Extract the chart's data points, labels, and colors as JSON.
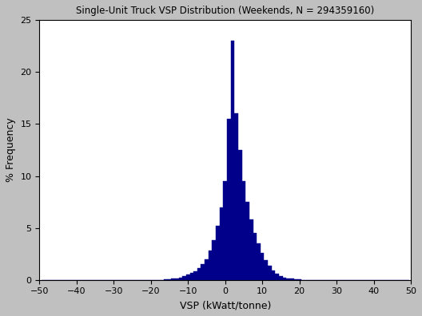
{
  "title": "Single-Unit Truck VSP Distribution (Weekends, N = 294359160)",
  "xlabel": "VSP (kWatt/tonne)",
  "ylabel": "% Frequency",
  "xlim": [
    -50,
    50
  ],
  "ylim": [
    0,
    25
  ],
  "xticks": [
    -50,
    -40,
    -30,
    -20,
    -10,
    0,
    10,
    20,
    30,
    40,
    50
  ],
  "yticks": [
    0,
    5,
    10,
    15,
    20,
    25
  ],
  "bar_color": "#00008B",
  "bar_edge_color": "#00008B",
  "background_color": "#C0C0C0",
  "plot_bg_color": "#FFFFFF",
  "title_fontsize": 8.5,
  "label_fontsize": 9,
  "tick_fontsize": 8,
  "bin_width": 1,
  "vsp_centers": [
    -49,
    -48,
    -47,
    -46,
    -45,
    -44,
    -43,
    -42,
    -41,
    -40,
    -39,
    -38,
    -37,
    -36,
    -35,
    -34,
    -33,
    -32,
    -31,
    -30,
    -29,
    -28,
    -27,
    -26,
    -25,
    -24,
    -23,
    -22,
    -21,
    -20,
    -19,
    -18,
    -17,
    -16,
    -15,
    -14,
    -13,
    -12,
    -11,
    -10,
    -9,
    -8,
    -7,
    -6,
    -5,
    -4,
    -3,
    -2,
    -1,
    0,
    1,
    2,
    3,
    4,
    5,
    6,
    7,
    8,
    9,
    10,
    11,
    12,
    13,
    14,
    15,
    16,
    17,
    18,
    19,
    20,
    21,
    22,
    23,
    24,
    25,
    26,
    27,
    28,
    29,
    30,
    31,
    32,
    33,
    34,
    35,
    36,
    37,
    38,
    39,
    40,
    41,
    42,
    43,
    44,
    45,
    46,
    47,
    48,
    49
  ],
  "frequencies": [
    0.0,
    0.0,
    0.0,
    0.0,
    0.0,
    0.0,
    0.0,
    0.0,
    0.0,
    0.0,
    0.0,
    0.0,
    0.0,
    0.0,
    0.0,
    0.0,
    0.0,
    0.0,
    0.0,
    0.0,
    0.0,
    0.0,
    0.0,
    0.0,
    0.0,
    0.0,
    0.0,
    0.0,
    0.0,
    0.0,
    0.0,
    0.0,
    0.0,
    0.05,
    0.08,
    0.1,
    0.15,
    0.25,
    0.35,
    0.5,
    0.65,
    0.85,
    1.1,
    1.5,
    2.0,
    2.8,
    3.8,
    5.2,
    7.0,
    9.5,
    15.5,
    23.0,
    16.0,
    12.5,
    9.5,
    7.5,
    5.8,
    4.5,
    3.5,
    2.6,
    1.9,
    1.35,
    0.9,
    0.6,
    0.38,
    0.24,
    0.15,
    0.1,
    0.06,
    0.04,
    0.02,
    0.01,
    0.0,
    0.0,
    0.0,
    0.0,
    0.0,
    0.0,
    0.0,
    0.0,
    0.0,
    0.0,
    0.0,
    0.0,
    0.0,
    0.0,
    0.0,
    0.0,
    0.0,
    0.0,
    0.0,
    0.0,
    0.0,
    0.0,
    0.0,
    0.0,
    0.0,
    0.0,
    0.0
  ]
}
